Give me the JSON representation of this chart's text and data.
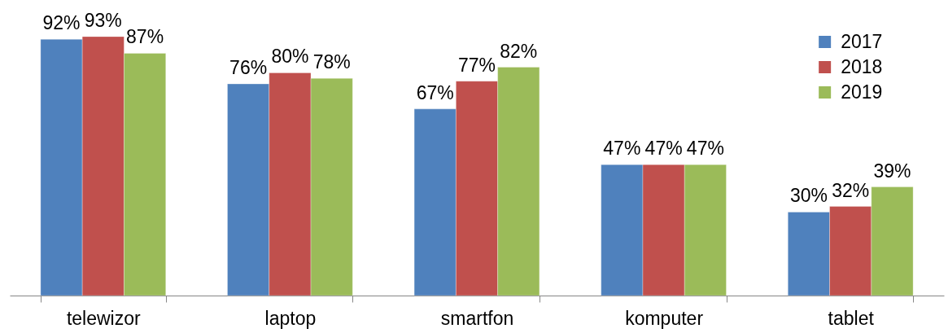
{
  "chart_data": {
    "type": "bar",
    "categories": [
      "telewizor",
      "laptop",
      "smartfon",
      "komputer",
      "tablet"
    ],
    "series": [
      {
        "name": "2017",
        "color": "#4f81bd",
        "values": [
          92,
          76,
          67,
          47,
          30
        ],
        "value_labels": [
          "92%",
          "76%",
          "67%",
          "47%",
          "30%"
        ]
      },
      {
        "name": "2018",
        "color": "#c0504d",
        "values": [
          93,
          80,
          77,
          47,
          32
        ],
        "value_labels": [
          "93%",
          "80%",
          "77%",
          "47%",
          "32%"
        ]
      },
      {
        "name": "2019",
        "color": "#9bbb59",
        "values": [
          87,
          78,
          82,
          47,
          39
        ],
        "value_labels": [
          "87%",
          "78%",
          "82%",
          "47%",
          "39%"
        ]
      }
    ],
    "legend": "top right",
    "grid": false
  }
}
